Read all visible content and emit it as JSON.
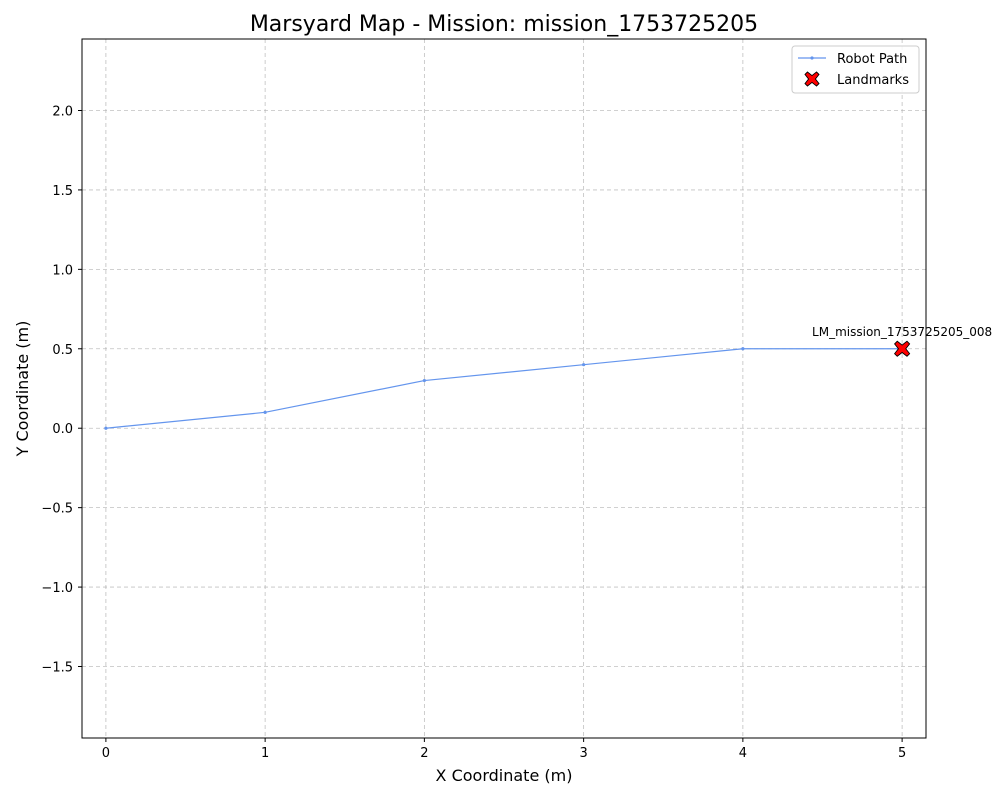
{
  "chart_data": {
    "type": "line",
    "title": "Marsyard Map - Mission: mission_1753725205",
    "xlabel": "X Coordinate (m)",
    "ylabel": "Y Coordinate (m)",
    "xlim": [
      -0.15,
      5.15
    ],
    "ylim": [
      -1.95,
      2.45
    ],
    "xticks": [
      0,
      1,
      2,
      3,
      4,
      5
    ],
    "yticks": [
      2.0,
      1.5,
      1.0,
      0.5,
      0.0,
      -0.5,
      -1.0,
      -1.5
    ],
    "xtick_labels": [
      "0",
      "1",
      "2",
      "3",
      "4",
      "5"
    ],
    "ytick_labels": [
      "2.0",
      "1.5",
      "1.0",
      "0.5",
      "0.0",
      "−0.5",
      "−1.0",
      "−1.5"
    ],
    "grid": true,
    "legend_position": "top-right",
    "series": [
      {
        "name": "Robot Path",
        "kind": "line",
        "color": "#6495ed",
        "x": [
          0,
          1,
          2,
          3,
          4,
          5
        ],
        "y": [
          0.0,
          0.1,
          0.3,
          0.4,
          0.5,
          0.5
        ]
      },
      {
        "name": "Landmarks",
        "kind": "scatter",
        "marker": "X",
        "color": "#ff0000",
        "x": [
          5
        ],
        "y": [
          0.5
        ],
        "labels": [
          "LM_mission_1753725205_008"
        ]
      }
    ]
  }
}
